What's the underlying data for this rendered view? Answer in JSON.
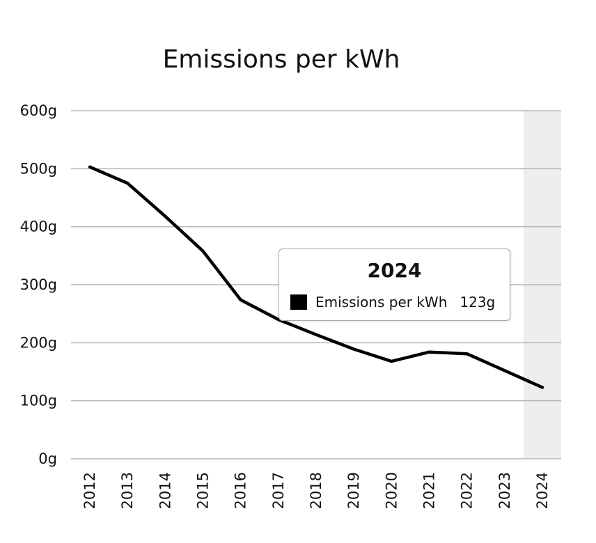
{
  "chart_data": {
    "type": "line",
    "title": "Emissions per kWh",
    "categories": [
      "2012",
      "2013",
      "2014",
      "2015",
      "2016",
      "2017",
      "2018",
      "2019",
      "2020",
      "2021",
      "2022",
      "2023",
      "2024"
    ],
    "series": [
      {
        "name": "Emissions per kWh",
        "values": [
          503,
          475,
          418,
          358,
          274,
          240,
          214,
          189,
          168,
          184,
          181,
          152,
          123
        ],
        "color": "#000000"
      }
    ],
    "ylim": [
      0,
      600
    ],
    "yticks": [
      0,
      100,
      200,
      300,
      400,
      500,
      600
    ],
    "ytick_labels": [
      "0g",
      "100g",
      "200g",
      "300g",
      "400g",
      "500g",
      "600g"
    ],
    "ylabel": "",
    "xlabel": "",
    "grid": true,
    "highlight_category": "2024",
    "highlight_color": "#eeeeee",
    "gridline_color": "#b5b5b5"
  },
  "tooltip": {
    "title": "2024",
    "series_name": "Emissions per kWh",
    "value_label": "123g",
    "swatch_color": "#000000"
  }
}
